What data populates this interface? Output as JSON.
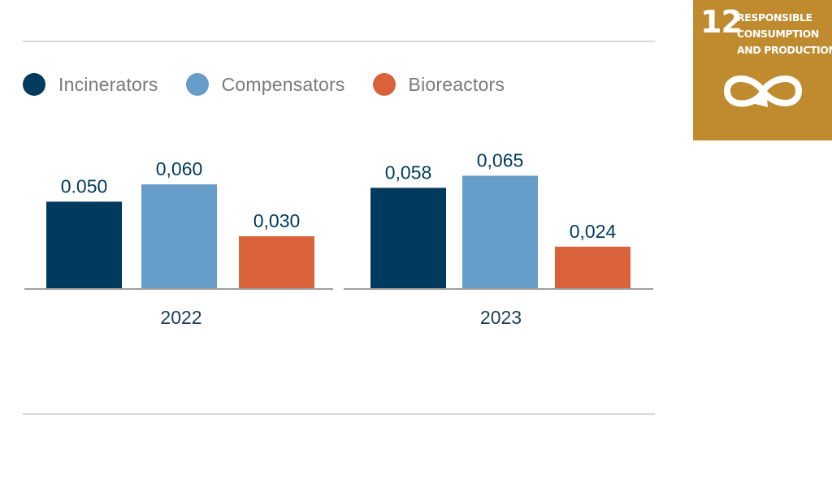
{
  "chart_data": {
    "type": "bar",
    "categories": [
      "2022",
      "2023"
    ],
    "series": [
      {
        "name": "Incinerators",
        "color": "#003a5f",
        "values": [
          0.05,
          0.058
        ],
        "labels": [
          "0.050",
          "0,058"
        ]
      },
      {
        "name": "Compensators",
        "color": "#669cc8",
        "values": [
          0.06,
          0.065
        ],
        "labels": [
          "0,060",
          "0,065"
        ]
      },
      {
        "name": "Bioreactors",
        "color": "#d9623b",
        "values": [
          0.03,
          0.024
        ],
        "labels": [
          "0,030",
          "0,024"
        ]
      }
    ],
    "ylim": [
      0,
      0.0915
    ],
    "grid": false,
    "legend": "top-left",
    "value_label_color": "#003a5f"
  },
  "sdg_badge": {
    "number": "12",
    "title_lines": [
      "RESPONSIBLE",
      "CONSUMPTION",
      "AND PRODUCTION"
    ],
    "icon": "infinity-loop-icon",
    "color": "#bf8b2e"
  }
}
